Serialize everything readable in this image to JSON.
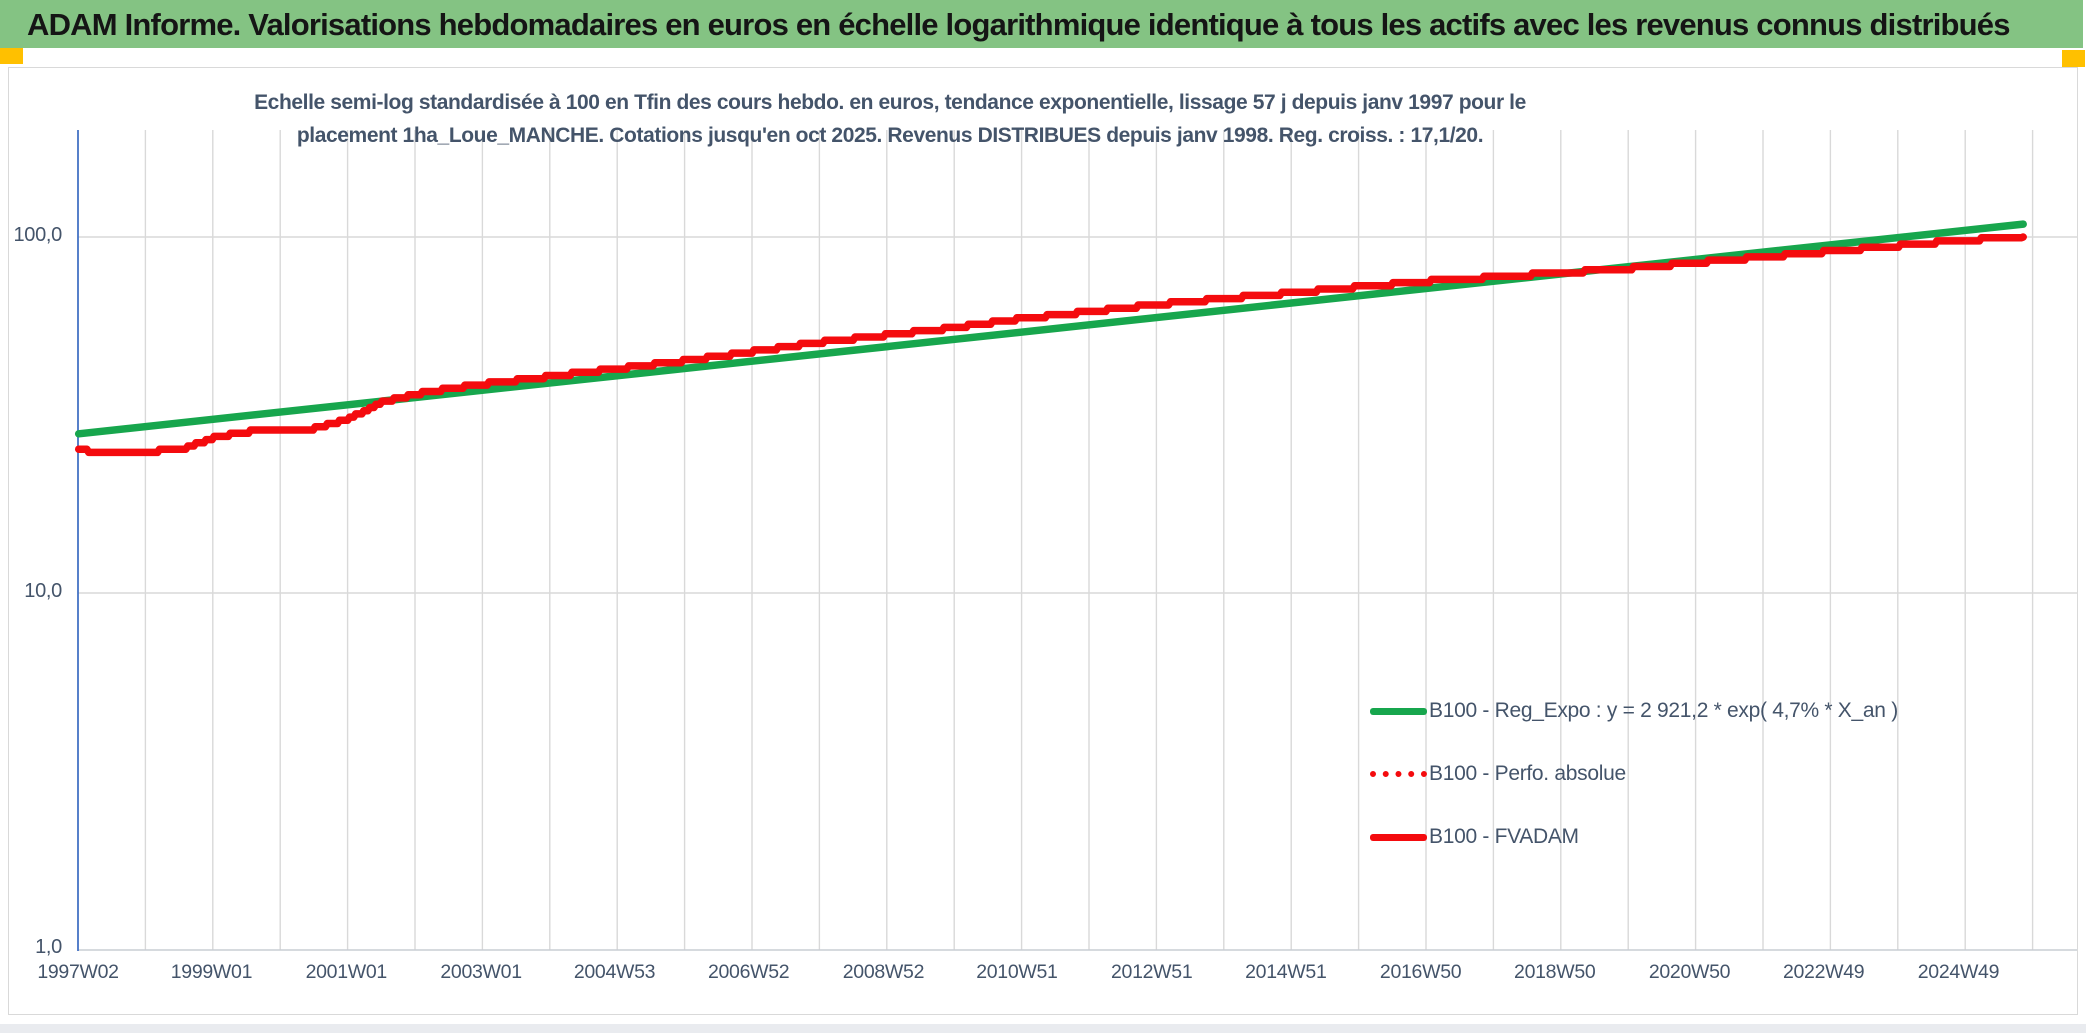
{
  "header": {
    "title": "ADAM Informe. Valorisations hebdomadaires en euros en échelle logarithmique identique à tous les actifs avec les revenus connus distribués",
    "background_color": "#84C383",
    "accent_square_color": "#FFC000"
  },
  "chart_data": {
    "type": "line",
    "title_line1": "Echelle semi-log standardisée à 100 en Tfin des cours hebdo. en euros, tendance exponentielle, lissage 57 j depuis janv 1997 pour le",
    "title_line2": "placement 1ha_Loue_MANCHE. Cotations jusqu'en oct 2025. Revenus DISTRIBUES depuis janv 1998. Reg. croiss. : 17,1/20.",
    "title_color": "#44546A",
    "y_axis": {
      "scale": "log",
      "tick_labels": [
        "100,0",
        "10,0",
        "1,0"
      ],
      "tick_values": [
        100,
        10,
        1
      ],
      "range": [
        1,
        200
      ],
      "axis_line_color": "#4472C4"
    },
    "x_axis": {
      "tick_labels": [
        "1997W02",
        "1999W01",
        "2001W01",
        "2003W01",
        "2004W53",
        "2006W52",
        "2008W52",
        "2010W51",
        "2012W51",
        "2014W51",
        "2016W50",
        "2018W50",
        "2020W50",
        "2022W49",
        "2024W49"
      ],
      "tick_times": [
        1997.04,
        1999.02,
        2001.02,
        2003.02,
        2005.0,
        2006.99,
        2008.99,
        2010.97,
        2012.97,
        2014.96,
        2016.96,
        2018.95,
        2020.95,
        2022.94,
        2024.94
      ],
      "range_start": 1997.04,
      "range_end": 2026.7,
      "gridline_interval_years": 1,
      "gridline_color": "#D9D9D9"
    },
    "series": [
      {
        "name": "B100 - Reg_Expo : y = 2 921,2 * exp( 4,7% *  X_an )",
        "color": "#17A64D",
        "style": "solid",
        "width": 7.5,
        "stepped": false,
        "x": [
          1997.05,
          2025.9
        ],
        "y": [
          28.0,
          108.7
        ]
      },
      {
        "name": "B100 - Perfo. absolue",
        "color": "#F40B0E",
        "style": "dotted",
        "width": 6,
        "stepped": true,
        "overlaps": "B100 - FVADAM",
        "x": [],
        "y": []
      },
      {
        "name": "B100 - FVADAM",
        "color": "#F40B0E",
        "style": "solid",
        "width": 7.5,
        "stepped": true,
        "x": [
          1997.05,
          1997.4,
          1998.0,
          1998.6,
          1999.1,
          1999.7,
          2000.5,
          2001.0,
          2001.6,
          2002.2,
          2003.0,
          2004.0,
          2005.0,
          2006.0,
          2007.0,
          2008.0,
          2009.0,
          2010.0,
          2011.0,
          2012.0,
          2013.0,
          2014.0,
          2015.0,
          2016.0,
          2017.0,
          2018.0,
          2019.0,
          2020.0,
          2021.0,
          2022.0,
          2023.0,
          2024.0,
          2025.0,
          2025.9
        ],
        "y": [
          25.3,
          24.8,
          24.9,
          25.4,
          27.5,
          28.6,
          28.9,
          30.5,
          34.6,
          36.7,
          38.5,
          40.5,
          42.6,
          44.8,
          47.5,
          50.5,
          52.9,
          55.5,
          58.8,
          61.6,
          64.5,
          67.0,
          69.6,
          72.3,
          75.0,
          77.1,
          79.3,
          81.4,
          84.5,
          87.7,
          90.9,
          94.3,
          97.9,
          100.0
        ]
      }
    ],
    "legend": {
      "position": "inside-bottom-right",
      "text_color": "#44546A",
      "entries": [
        {
          "label": "B100 - Reg_Expo : y = 2 921,2 * exp( 4,7% *  X_an )",
          "color": "#17A64D",
          "style": "solid"
        },
        {
          "label": "B100 - Perfo. absolue",
          "color": "#F40B0E",
          "style": "dotted"
        },
        {
          "label": "B100 - FVADAM",
          "color": "#F40B0E",
          "style": "solid"
        }
      ]
    }
  }
}
